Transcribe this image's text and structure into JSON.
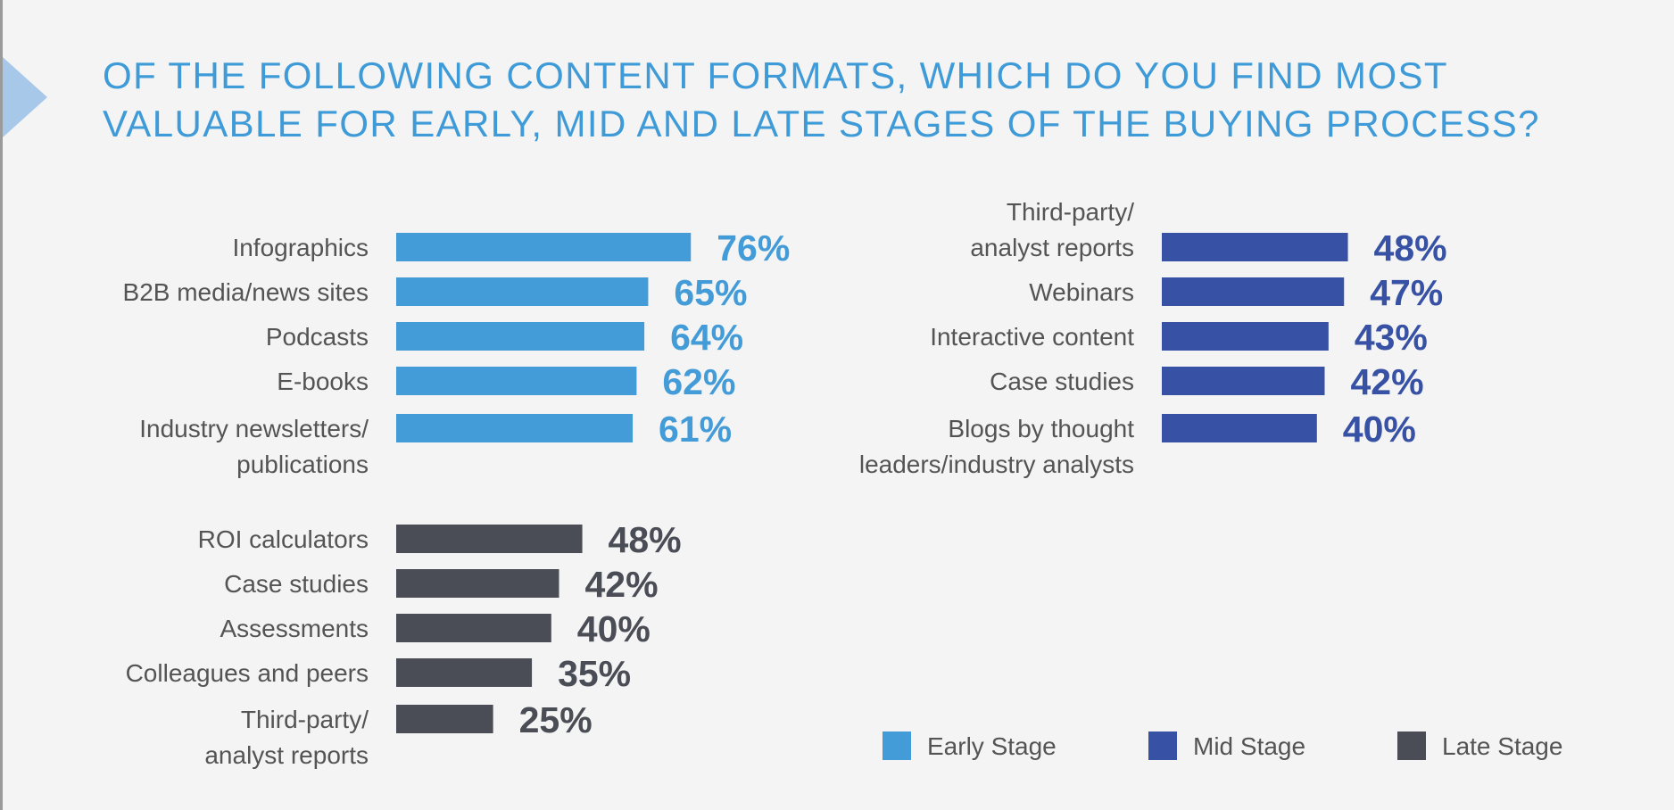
{
  "title_lines": [
    "OF THE FOLLOWING CONTENT FORMATS, WHICH DO YOU FIND MOST",
    "VALUABLE FOR EARLY, MID AND LATE STAGES OF THE BUYING PROCESS?"
  ],
  "colors": {
    "early": "#439cd8",
    "mid": "#3751a4",
    "late": "#4a4d55",
    "title": "#3f9bd8",
    "marker": "#a8c8ea"
  },
  "legend": [
    {
      "key": "early",
      "label": "Early Stage"
    },
    {
      "key": "mid",
      "label": "Mid Stage"
    },
    {
      "key": "late",
      "label": "Late Stage"
    }
  ],
  "chart_data": [
    {
      "type": "bar",
      "orientation": "horizontal",
      "stage": "early",
      "series_name": "Early Stage",
      "categories": [
        [
          "Infographics"
        ],
        [
          "B2B media/news sites"
        ],
        [
          "Podcasts"
        ],
        [
          "E-books"
        ],
        [
          "Industry newsletters/",
          "publications"
        ]
      ],
      "values": [
        76,
        65,
        64,
        62,
        61
      ],
      "value_labels": [
        "76%",
        "65%",
        "64%",
        "62%",
        "61%"
      ],
      "unit": "%",
      "xlim": [
        0,
        100
      ]
    },
    {
      "type": "bar",
      "orientation": "horizontal",
      "stage": "mid",
      "series_name": "Mid Stage",
      "categories": [
        [
          "Third-party/",
          "analyst reports"
        ],
        [
          "Webinars"
        ],
        [
          "Interactive content"
        ],
        [
          "Case studies"
        ],
        [
          "Blogs by thought",
          "leaders/industry analysts"
        ]
      ],
      "values": [
        48,
        47,
        43,
        42,
        40
      ],
      "value_labels": [
        "48%",
        "47%",
        "43%",
        "42%",
        "40%"
      ],
      "unit": "%",
      "xlim": [
        0,
        100
      ]
    },
    {
      "type": "bar",
      "orientation": "horizontal",
      "stage": "late",
      "series_name": "Late Stage",
      "categories": [
        [
          "ROI calculators"
        ],
        [
          "Case studies"
        ],
        [
          "Assessments"
        ],
        [
          "Colleagues and peers"
        ],
        [
          "Third-party/",
          "analyst reports"
        ]
      ],
      "values": [
        48,
        42,
        40,
        35,
        25
      ],
      "value_labels": [
        "48%",
        "42%",
        "40%",
        "35%",
        "25%"
      ],
      "unit": "%",
      "xlim": [
        0,
        100
      ]
    }
  ]
}
